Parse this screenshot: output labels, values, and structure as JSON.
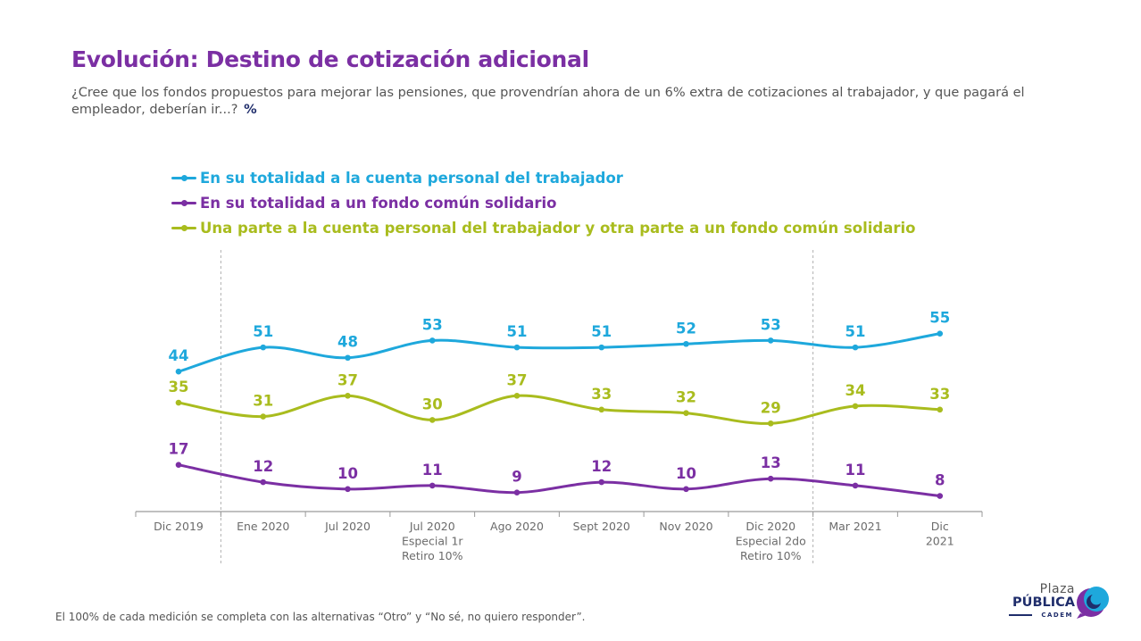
{
  "header": {
    "title": "Evolución: Destino de cotización adicional",
    "question": "¿Cree que los fondos propuestos para mejorar las pensiones, que provendrían ahora de un 6% extra de cotizaciones al trabajador, y que pagará el empleador, deberían ir...?",
    "unit": "%"
  },
  "chart_data": {
    "type": "line",
    "title": "",
    "xlabel": "",
    "ylabel": "",
    "grid": false,
    "legend_position": "top-left",
    "categories": [
      [
        "Dic 2019"
      ],
      [
        "Ene 2020"
      ],
      [
        "Jul 2020"
      ],
      [
        "Jul 2020",
        "Especial 1r",
        "Retiro 10%"
      ],
      [
        "Ago 2020"
      ],
      [
        "Sept 2020"
      ],
      [
        "Nov 2020"
      ],
      [
        "Dic 2020",
        "Especial 2do",
        "Retiro 10%"
      ],
      [
        "Mar 2021"
      ],
      [
        "Dic",
        "2021"
      ]
    ],
    "separators_after_index": [
      0,
      7
    ],
    "series": [
      {
        "name": "En su totalidad a la cuenta personal del trabajador",
        "color": "#1ea8dc",
        "values": [
          44,
          51,
          48,
          53,
          51,
          51,
          52,
          53,
          51,
          55
        ]
      },
      {
        "name": "En su totalidad a un fondo común solidario",
        "color": "#7b2fa3",
        "values": [
          17,
          12,
          10,
          11,
          9,
          12,
          10,
          13,
          11,
          8
        ]
      },
      {
        "name": "Una parte a la cuenta personal del trabajador y otra parte a un fondo común solidario",
        "color": "#a9bc1e",
        "values": [
          35,
          31,
          37,
          30,
          37,
          33,
          32,
          29,
          34,
          33
        ]
      }
    ]
  },
  "footnote": "El 100% de cada medición se completa con las alternativas “Otro” y “No sé, no quiero responder”.",
  "logo": {
    "line1": "Plaza",
    "line2": "PÚBLICA",
    "line3": "CADEM",
    "colors": {
      "navy": "#1f2d6b",
      "purple": "#7b2fa3",
      "blue": "#1ea8dc"
    }
  }
}
